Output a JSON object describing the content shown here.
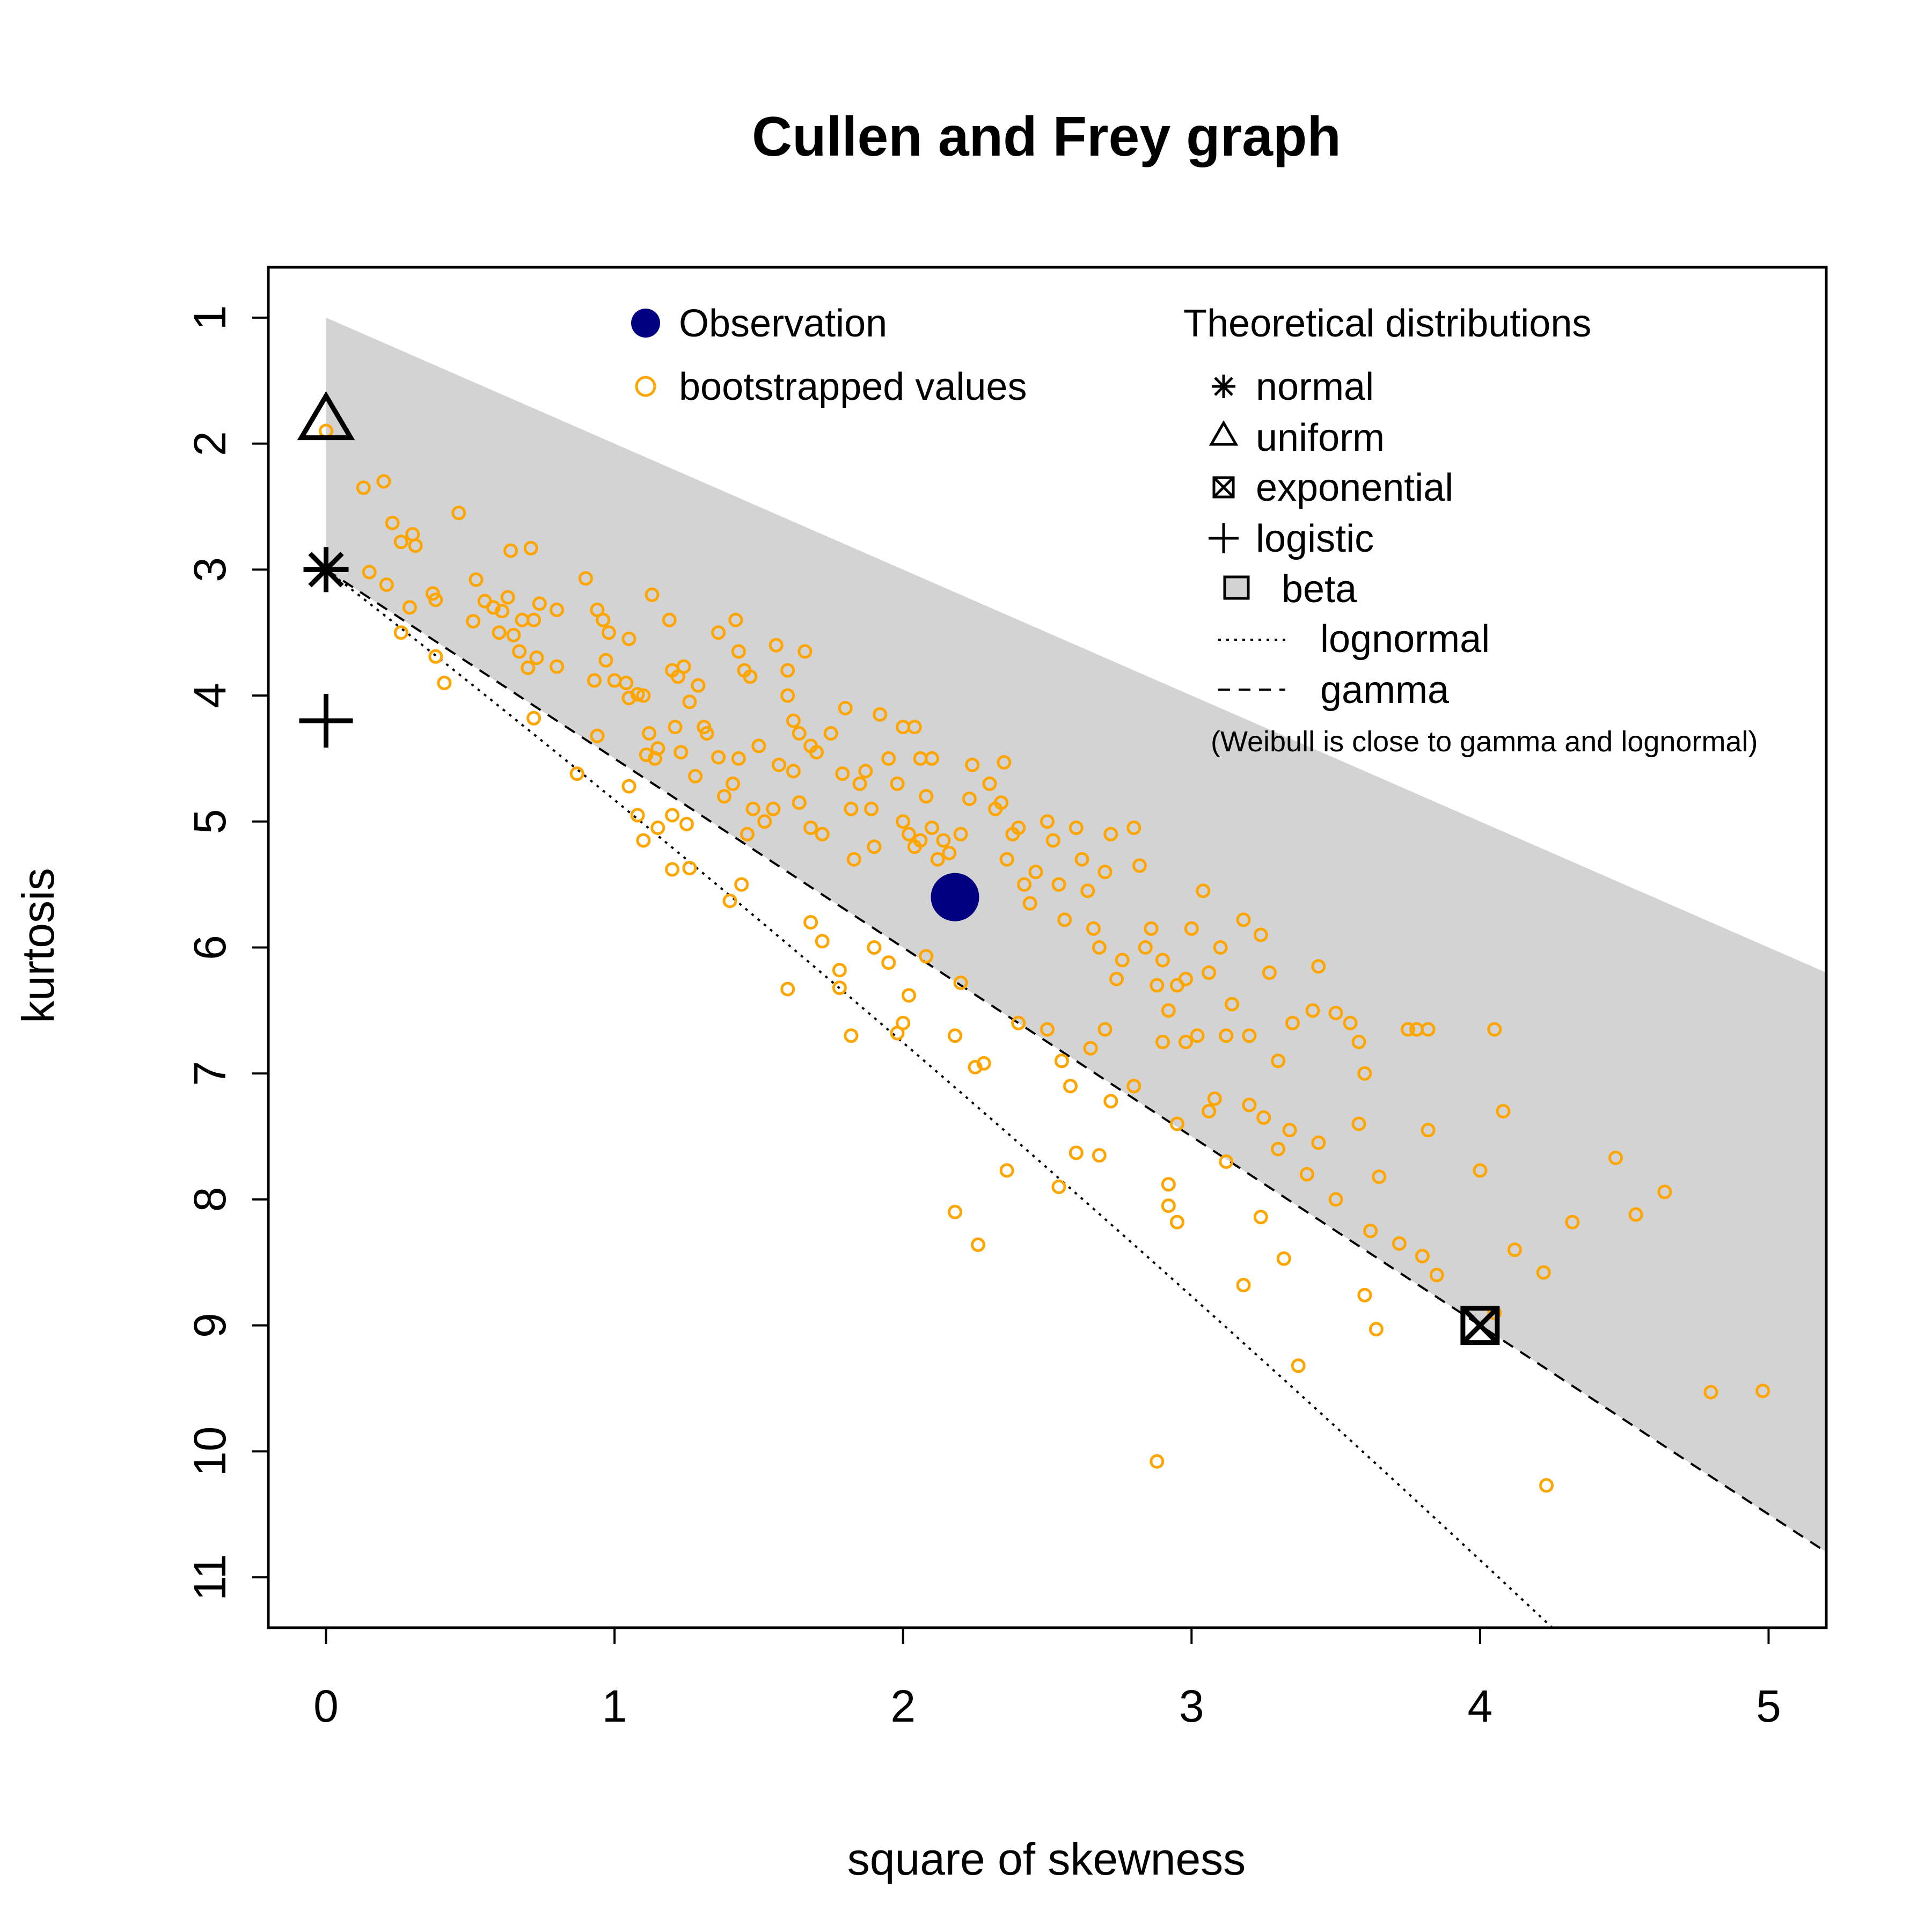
{
  "chart_data": {
    "type": "scatter",
    "title": "Cullen and Frey graph",
    "xlabel": "square of skewness",
    "ylabel": "kurtosis",
    "xlim": [
      -0.2,
      5.2
    ],
    "ylim": [
      11.4,
      0.6
    ],
    "y_axis_reversed": true,
    "x_ticks": [
      "0",
      "1",
      "2",
      "3",
      "4",
      "5"
    ],
    "y_ticks": [
      "1",
      "2",
      "3",
      "4",
      "5",
      "6",
      "7",
      "8",
      "9",
      "10",
      "11"
    ],
    "grid": false,
    "colors": {
      "observation": "#000080",
      "bootstrap": "#FFA500",
      "beta_region": "#D3D3D3",
      "axes": "#000000"
    },
    "observation": {
      "label": "Observation",
      "x": 2.18,
      "y": 5.6
    },
    "bootstrap": {
      "label": "bootstrapped values",
      "points": [
        [
          0.0,
          1.9
        ],
        [
          0.13,
          2.35
        ],
        [
          0.2,
          2.3
        ],
        [
          0.15,
          3.02
        ],
        [
          0.23,
          2.63
        ],
        [
          0.26,
          2.78
        ],
        [
          0.3,
          2.72
        ],
        [
          0.31,
          2.81
        ],
        [
          0.21,
          3.12
        ],
        [
          0.29,
          3.3
        ],
        [
          0.26,
          3.5
        ],
        [
          0.37,
          3.19
        ],
        [
          0.38,
          3.24
        ],
        [
          0.46,
          2.55
        ],
        [
          0.52,
          3.08
        ],
        [
          0.51,
          3.41
        ],
        [
          0.55,
          3.25
        ],
        [
          0.58,
          3.3
        ],
        [
          0.61,
          3.33
        ],
        [
          0.63,
          3.22
        ],
        [
          0.6,
          3.5
        ],
        [
          0.65,
          3.52
        ],
        [
          0.68,
          3.4
        ],
        [
          0.72,
          3.4
        ],
        [
          0.74,
          3.27
        ],
        [
          0.67,
          3.65
        ],
        [
          0.7,
          3.78
        ],
        [
          0.73,
          3.7
        ],
        [
          0.8,
          3.32
        ],
        [
          0.8,
          3.77
        ],
        [
          0.64,
          2.85
        ],
        [
          0.71,
          2.83
        ],
        [
          0.9,
          3.07
        ],
        [
          0.94,
          3.32
        ],
        [
          0.96,
          3.4
        ],
        [
          0.98,
          3.5
        ],
        [
          0.93,
          3.88
        ],
        [
          0.97,
          3.72
        ],
        [
          1.0,
          3.88
        ],
        [
          1.04,
          3.9
        ],
        [
          1.05,
          3.55
        ],
        [
          1.05,
          4.02
        ],
        [
          1.08,
          3.99
        ],
        [
          1.1,
          4.0
        ],
        [
          1.12,
          4.3
        ],
        [
          1.11,
          4.47
        ],
        [
          1.14,
          4.5
        ],
        [
          1.15,
          4.42
        ],
        [
          1.13,
          3.2
        ],
        [
          1.19,
          3.4
        ],
        [
          1.2,
          3.8
        ],
        [
          1.22,
          3.85
        ],
        [
          1.24,
          3.77
        ],
        [
          1.26,
          4.05
        ],
        [
          1.29,
          3.92
        ],
        [
          1.21,
          4.25
        ],
        [
          1.23,
          4.45
        ],
        [
          1.28,
          4.64
        ],
        [
          1.31,
          4.25
        ],
        [
          1.32,
          4.3
        ],
        [
          1.36,
          4.49
        ],
        [
          1.38,
          4.8
        ],
        [
          1.41,
          4.7
        ],
        [
          1.36,
          3.5
        ],
        [
          1.42,
          3.4
        ],
        [
          1.43,
          3.65
        ],
        [
          1.45,
          3.8
        ],
        [
          1.47,
          3.85
        ],
        [
          1.43,
          4.5
        ],
        [
          1.5,
          4.4
        ],
        [
          1.48,
          4.9
        ],
        [
          1.46,
          5.1
        ],
        [
          1.52,
          5.0
        ],
        [
          1.55,
          4.9
        ],
        [
          1.57,
          4.55
        ],
        [
          1.56,
          3.6
        ],
        [
          1.6,
          3.8
        ],
        [
          1.6,
          4.0
        ],
        [
          1.62,
          4.2
        ],
        [
          1.64,
          4.3
        ],
        [
          1.66,
          3.65
        ],
        [
          1.68,
          4.4
        ],
        [
          1.7,
          4.45
        ],
        [
          1.62,
          4.6
        ],
        [
          1.64,
          4.85
        ],
        [
          1.68,
          5.05
        ],
        [
          1.72,
          5.1
        ],
        [
          1.75,
          4.3
        ],
        [
          1.8,
          4.1
        ],
        [
          1.79,
          4.62
        ],
        [
          1.82,
          4.9
        ],
        [
          1.85,
          4.7
        ],
        [
          1.87,
          4.6
        ],
        [
          1.89,
          4.9
        ],
        [
          1.9,
          5.2
        ],
        [
          1.83,
          5.3
        ],
        [
          1.92,
          4.15
        ],
        [
          1.95,
          4.5
        ],
        [
          1.98,
          4.7
        ],
        [
          2.0,
          4.25
        ],
        [
          2.04,
          4.25
        ],
        [
          2.06,
          4.5
        ],
        [
          2.08,
          4.8
        ],
        [
          2.1,
          4.5
        ],
        [
          2.0,
          5.0
        ],
        [
          2.02,
          5.1
        ],
        [
          2.04,
          5.2
        ],
        [
          2.06,
          5.15
        ],
        [
          2.1,
          5.05
        ],
        [
          2.12,
          5.3
        ],
        [
          2.14,
          5.15
        ],
        [
          2.16,
          5.25
        ],
        [
          2.2,
          5.1
        ],
        [
          2.23,
          4.82
        ],
        [
          2.24,
          4.55
        ],
        [
          2.3,
          4.7
        ],
        [
          2.32,
          4.9
        ],
        [
          2.34,
          4.85
        ],
        [
          2.35,
          4.53
        ],
        [
          2.36,
          5.3
        ],
        [
          2.38,
          5.1
        ],
        [
          2.4,
          5.05
        ],
        [
          2.42,
          5.5
        ],
        [
          2.44,
          5.65
        ],
        [
          2.46,
          5.4
        ],
        [
          2.5,
          5.0
        ],
        [
          2.52,
          5.15
        ],
        [
          2.54,
          5.5
        ],
        [
          2.56,
          5.78
        ],
        [
          2.6,
          5.05
        ],
        [
          2.62,
          5.3
        ],
        [
          2.64,
          5.55
        ],
        [
          2.66,
          5.85
        ],
        [
          2.68,
          6.0
        ],
        [
          2.7,
          5.4
        ],
        [
          2.72,
          5.1
        ],
        [
          2.74,
          6.25
        ],
        [
          2.76,
          6.1
        ],
        [
          2.8,
          5.05
        ],
        [
          2.82,
          5.35
        ],
        [
          2.84,
          6.0
        ],
        [
          2.86,
          5.85
        ],
        [
          2.88,
          6.3
        ],
        [
          2.9,
          6.1
        ],
        [
          2.92,
          6.5
        ],
        [
          2.95,
          6.3
        ],
        [
          2.98,
          6.25
        ],
        [
          3.0,
          5.85
        ],
        [
          3.02,
          6.7
        ],
        [
          3.04,
          5.55
        ],
        [
          3.06,
          6.2
        ],
        [
          3.1,
          6.0
        ],
        [
          3.12,
          6.7
        ],
        [
          3.14,
          6.45
        ],
        [
          3.18,
          5.78
        ],
        [
          3.2,
          6.7
        ],
        [
          3.24,
          5.9
        ],
        [
          3.27,
          6.2
        ],
        [
          3.3,
          6.9
        ],
        [
          3.35,
          6.6
        ],
        [
          3.42,
          6.5
        ],
        [
          3.44,
          6.15
        ],
        [
          3.5,
          6.52
        ],
        [
          3.55,
          6.6
        ],
        [
          3.58,
          6.75
        ],
        [
          3.6,
          7.0
        ],
        [
          3.75,
          6.65
        ],
        [
          3.78,
          6.65
        ],
        [
          3.82,
          6.65
        ],
        [
          4.05,
          6.65
        ],
        [
          4.08,
          7.3
        ],
        [
          2.18,
          6.7
        ],
        [
          2.2,
          6.28
        ],
        [
          2.25,
          6.95
        ],
        [
          2.28,
          6.92
        ],
        [
          2.4,
          6.6
        ],
        [
          2.5,
          6.65
        ],
        [
          2.55,
          6.9
        ],
        [
          2.58,
          7.1
        ],
        [
          2.65,
          6.8
        ],
        [
          2.7,
          6.65
        ],
        [
          2.72,
          7.22
        ],
        [
          2.8,
          7.1
        ],
        [
          2.9,
          6.75
        ],
        [
          2.95,
          7.4
        ],
        [
          2.98,
          6.75
        ],
        [
          3.06,
          7.3
        ],
        [
          3.08,
          7.2
        ],
        [
          3.12,
          7.7
        ],
        [
          3.2,
          7.25
        ],
        [
          3.25,
          7.35
        ],
        [
          3.3,
          7.6
        ],
        [
          3.34,
          7.45
        ],
        [
          3.4,
          7.8
        ],
        [
          3.44,
          7.55
        ],
        [
          3.5,
          8.0
        ],
        [
          3.58,
          7.4
        ],
        [
          3.62,
          8.25
        ],
        [
          3.65,
          7.82
        ],
        [
          3.72,
          8.35
        ],
        [
          3.8,
          8.45
        ],
        [
          3.82,
          7.45
        ],
        [
          3.85,
          8.6
        ],
        [
          4.0,
          7.77
        ],
        [
          4.05,
          8.9
        ],
        [
          4.12,
          8.4
        ],
        [
          4.22,
          8.58
        ],
        [
          4.32,
          8.18
        ],
        [
          4.47,
          7.67
        ],
        [
          4.54,
          8.12
        ],
        [
          4.64,
          7.94
        ],
        [
          4.8,
          9.53
        ],
        [
          4.98,
          9.52
        ],
        [
          4.23,
          10.27
        ],
        [
          2.88,
          10.08
        ],
        [
          3.37,
          9.32
        ],
        [
          3.6,
          8.76
        ],
        [
          3.64,
          9.03
        ],
        [
          3.32,
          8.47
        ],
        [
          3.18,
          8.68
        ],
        [
          3.24,
          8.14
        ],
        [
          2.95,
          8.18
        ],
        [
          2.92,
          7.88
        ],
        [
          2.92,
          8.05
        ],
        [
          2.6,
          7.63
        ],
        [
          2.68,
          7.65
        ],
        [
          2.54,
          7.9
        ],
        [
          2.36,
          7.77
        ],
        [
          2.26,
          8.36
        ],
        [
          2.18,
          8.1
        ],
        [
          0.87,
          4.62
        ],
        [
          1.05,
          4.72
        ],
        [
          1.08,
          4.95
        ],
        [
          1.1,
          5.15
        ],
        [
          1.15,
          5.05
        ],
        [
          1.2,
          4.95
        ],
        [
          1.25,
          5.02
        ],
        [
          1.2,
          5.38
        ],
        [
          1.26,
          5.37
        ],
        [
          1.4,
          5.63
        ],
        [
          1.44,
          5.5
        ],
        [
          1.6,
          6.33
        ],
        [
          1.68,
          5.8
        ],
        [
          1.72,
          5.95
        ],
        [
          1.78,
          6.18
        ],
        [
          1.78,
          6.32
        ],
        [
          1.82,
          6.7
        ],
        [
          1.9,
          6.0
        ],
        [
          1.95,
          6.12
        ],
        [
          1.98,
          6.68
        ],
        [
          2.0,
          6.6
        ],
        [
          2.02,
          6.38
        ],
        [
          2.08,
          6.07
        ],
        [
          0.38,
          3.69
        ],
        [
          0.41,
          3.9
        ],
        [
          0.72,
          4.18
        ],
        [
          0.94,
          4.32
        ]
      ]
    },
    "beta_region_label": "beta",
    "theoretical": {
      "heading": "Theoretical distributions",
      "normal": {
        "label": "normal",
        "x": 0,
        "y": 3
      },
      "uniform": {
        "label": "uniform",
        "x": 0,
        "y": 1.8
      },
      "exponential": {
        "label": "exponential",
        "x": 4,
        "y": 9
      },
      "logistic": {
        "label": "logistic",
        "x": 0,
        "y": 4.2
      },
      "lognormal": {
        "label": "lognormal"
      },
      "gamma": {
        "label": "gamma"
      },
      "note": "(Weibull is close to gamma and lognormal)"
    }
  }
}
